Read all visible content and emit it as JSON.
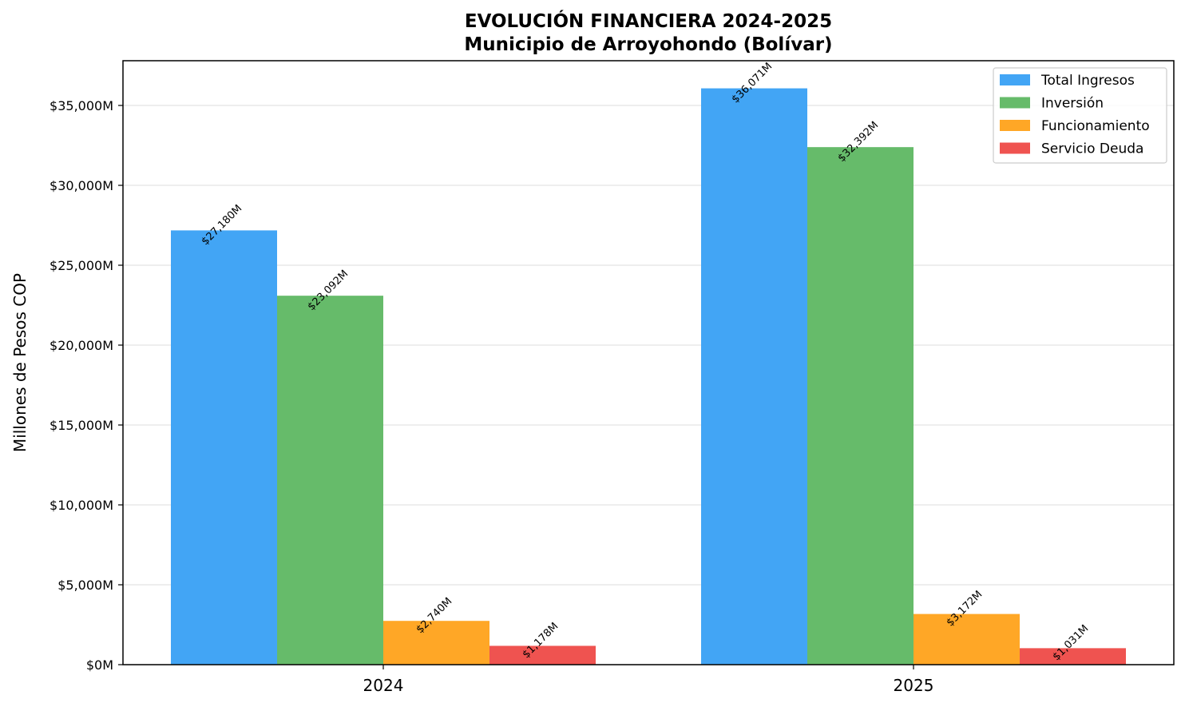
{
  "chart_data": {
    "type": "bar",
    "title": "EVOLUCIÓN FINANCIERA 2024-2025",
    "subtitle": "Municipio de Arroyohondo (Bolívar)",
    "xlabel": "",
    "ylabel": "Millones de Pesos COP",
    "categories": [
      "2024",
      "2025"
    ],
    "ylim": [
      0,
      37800
    ],
    "yticks": [
      0,
      5000,
      10000,
      15000,
      20000,
      25000,
      30000,
      35000
    ],
    "ytick_labels": [
      "$0M",
      "$5,000M",
      "$10,000M",
      "$15,000M",
      "$20,000M",
      "$25,000M",
      "$30,000M",
      "$35,000M"
    ],
    "grid": "horizontal",
    "legend_position": "top-right",
    "series": [
      {
        "name": "Total Ingresos",
        "color": "#42a5f5",
        "values": [
          27180,
          36071
        ],
        "labels": [
          "$27,180M",
          "$36,071M"
        ]
      },
      {
        "name": "Inversión",
        "color": "#66bb6a",
        "values": [
          23092,
          32392
        ],
        "labels": [
          "$23,092M",
          "$32,392M"
        ]
      },
      {
        "name": "Funcionamiento",
        "color": "#ffa726",
        "values": [
          2740,
          3172
        ],
        "labels": [
          "$2,740M",
          "$3,172M"
        ]
      },
      {
        "name": "Servicio Deuda",
        "color": "#ef5350",
        "values": [
          1178,
          1031
        ],
        "labels": [
          "$1,178M",
          "$1,031M"
        ]
      }
    ]
  }
}
